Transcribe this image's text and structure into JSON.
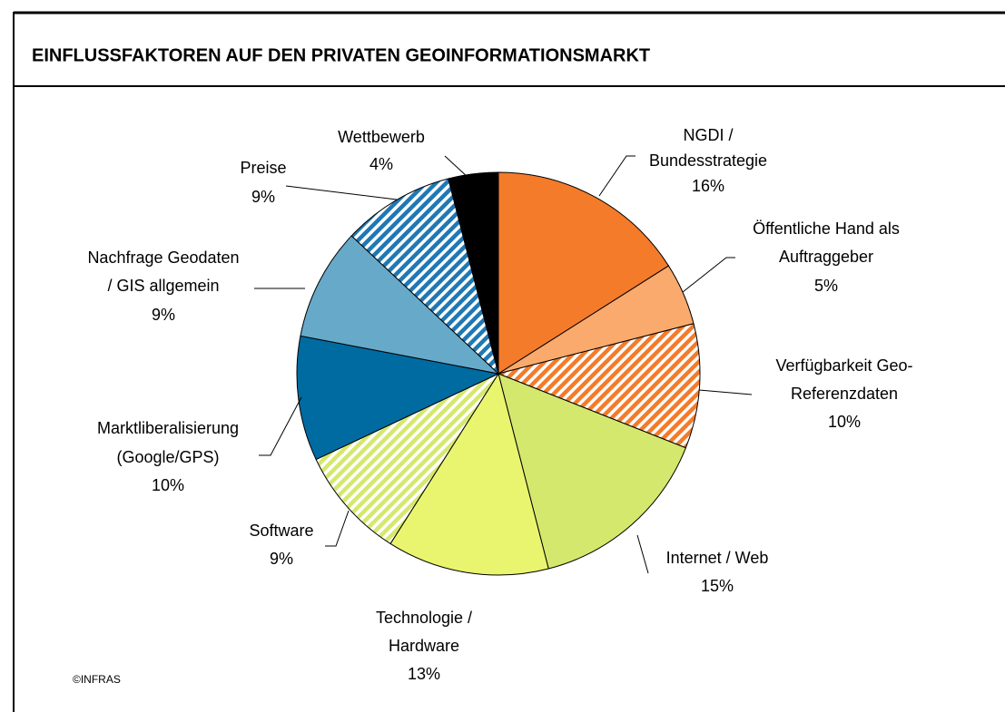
{
  "chart_data": {
    "type": "pie",
    "title": "EINFLUSSFAKTOREN AUF DEN PRIVATEN GEOINFORMATIONSMARKT",
    "categories": [
      [
        "NGDI /",
        "Bundesstrategie"
      ],
      [
        "Öffentliche Hand als",
        "Auftraggeber"
      ],
      [
        "Verfügbarkeit Geo-",
        "Referenzdaten"
      ],
      [
        "Internet / Web"
      ],
      [
        "Technologie /",
        "Hardware"
      ],
      [
        "Software"
      ],
      [
        "Marktliberalisierung",
        "(Google/GPS)"
      ],
      [
        "Nachfrage Geodaten",
        "/ GIS allgemein"
      ],
      [
        "Preise"
      ],
      [
        "Wettbewerb"
      ]
    ],
    "values": [
      16,
      5,
      10,
      15,
      13,
      9,
      10,
      9,
      9,
      4
    ],
    "value_labels": [
      "16%",
      "5%",
      "10%",
      "15%",
      "13%",
      "9%",
      "10%",
      "9%",
      "9%",
      "4%"
    ],
    "colors": [
      "#f47b2a",
      "#f9aa6c",
      "#f47b2a",
      "#d5e86e",
      "#e9f56e",
      "#d5e86e",
      "#006ba1",
      "#67a9c9",
      "#1f78b4",
      "#000000"
    ],
    "hatched": [
      false,
      false,
      true,
      false,
      false,
      true,
      false,
      false,
      true,
      false
    ],
    "source": "©INFRAS"
  }
}
